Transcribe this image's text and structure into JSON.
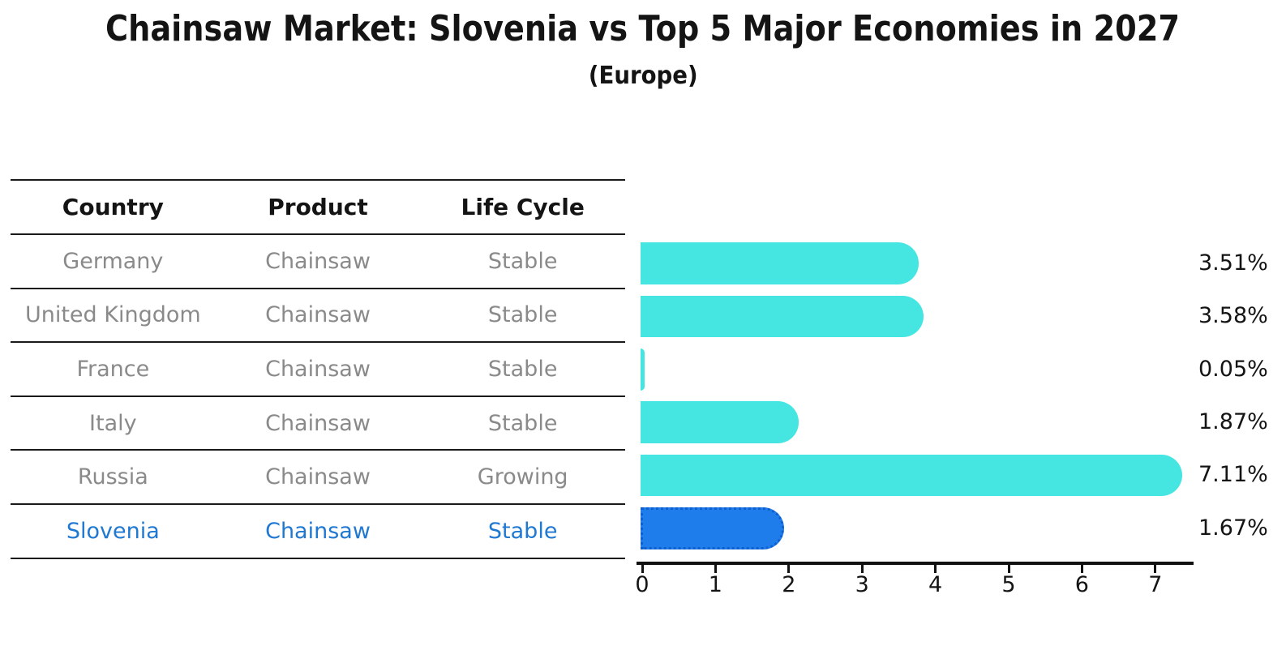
{
  "title": "Chainsaw Market: Slovenia vs Top 5 Major Economies in 2027",
  "subtitle": "(Europe)",
  "table": {
    "headers": [
      "Country",
      "Product",
      "Life Cycle"
    ],
    "rows": [
      {
        "country": "Germany",
        "product": "Chainsaw",
        "life_cycle": "Stable",
        "share": "3.51%",
        "highlighted": false
      },
      {
        "country": "United Kingdom",
        "product": "Chainsaw",
        "life_cycle": "Stable",
        "share": "3.58%",
        "highlighted": false
      },
      {
        "country": "France",
        "product": "Chainsaw",
        "life_cycle": "Stable",
        "share": "0.05%",
        "highlighted": false
      },
      {
        "country": "Italy",
        "product": "Chainsaw",
        "life_cycle": "Stable",
        "share": "1.87%",
        "highlighted": false
      },
      {
        "country": "Russia",
        "product": "Chainsaw",
        "life_cycle": "Growing",
        "share": "7.11%",
        "highlighted": false
      },
      {
        "country": "Slovenia",
        "product": "Chainsaw",
        "life_cycle": "Stable",
        "share": "1.67%",
        "highlighted": true
      }
    ]
  },
  "chart_data": {
    "type": "bar",
    "orientation": "horizontal",
    "title": "Chainsaw Market: Slovenia vs Top 5 Major Economies in 2027 (Europe)",
    "categories": [
      "Germany",
      "United Kingdom",
      "France",
      "Italy",
      "Russia",
      "Slovenia"
    ],
    "values": [
      3.51,
      3.58,
      0.05,
      1.87,
      7.11,
      1.67
    ],
    "value_labels": [
      "3.51%",
      "3.58%",
      "0.05%",
      "1.87%",
      "7.11%",
      "1.67%"
    ],
    "unit": "percent",
    "xlim": [
      0,
      7.5
    ],
    "xticks": [
      0,
      1,
      2,
      3,
      4,
      5,
      6,
      7
    ],
    "grid": false,
    "legend": null,
    "highlight_index": 5,
    "bar_color": "#45E5E2",
    "highlight_bar_color": "#1E7DEB",
    "highlight_border_color": "#0F5FD0"
  },
  "colors": {
    "background": "#ffffff",
    "text_primary": "#141414",
    "text_muted": "#8a8a8a",
    "highlight_text": "#1F78D1",
    "table_line": "#1a1a1a",
    "axis_line": "#111111"
  }
}
